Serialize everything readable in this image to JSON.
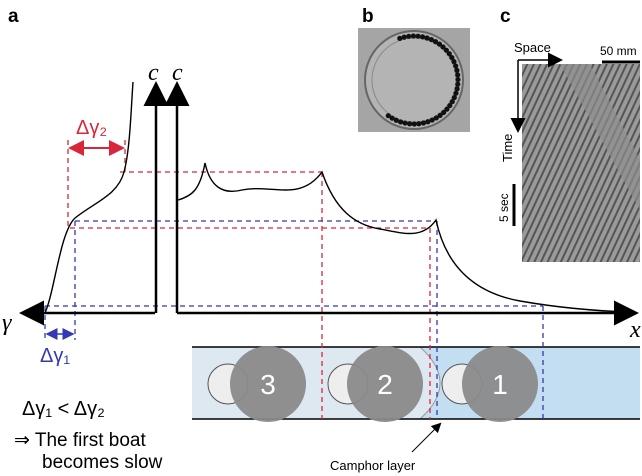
{
  "panels": {
    "a": "a",
    "b": "b",
    "c": "c"
  },
  "axes": {
    "c_left": "c",
    "c_right": "c",
    "gamma": "γ",
    "x": "x"
  },
  "annotations": {
    "delta_gamma_2": "Δγ₂",
    "delta_gamma_1": "Δγ₁",
    "inequality": "Δγ₁ < Δγ₂",
    "conclusion_line1": "⇒ The first boat",
    "conclusion_line2": "becomes slow",
    "camphor": "Camphor layer"
  },
  "boats": [
    "3",
    "2",
    "1"
  ],
  "panel_c": {
    "space": "Space",
    "time": "Time",
    "scale_space": "50 mm",
    "scale_time": "5 sec"
  }
}
